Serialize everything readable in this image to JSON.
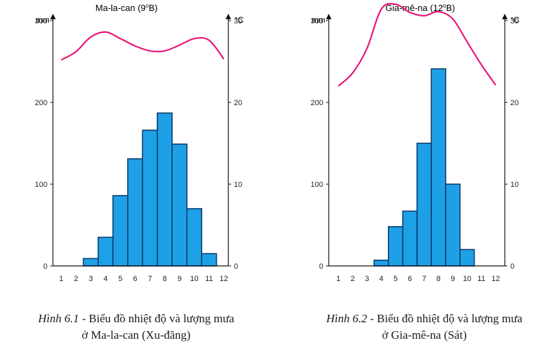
{
  "chart_data": [
    {
      "type": "bar",
      "title": "Ma-la-can (9",
      "title_sup": "o",
      "title_end": "B)",
      "y_left_unit": "mm",
      "y_right_unit": "°C",
      "y_left_ticks": [
        "0",
        "100",
        "200",
        "300"
      ],
      "y_right_ticks": [
        "0",
        "10",
        "20",
        "30"
      ],
      "ylim_left": [
        0,
        300
      ],
      "ylim_right": [
        0,
        30
      ],
      "categories": [
        "1",
        "2",
        "3",
        "4",
        "5",
        "6",
        "7",
        "8",
        "9",
        "10",
        "11",
        "12"
      ],
      "series": [
        {
          "type": "bar",
          "axis": "left",
          "values": [
            0,
            0,
            9,
            35,
            86,
            131,
            166,
            187,
            149,
            70,
            15,
            0
          ]
        },
        {
          "type": "line",
          "axis": "right",
          "values": [
            25.2,
            26.2,
            28.0,
            28.6,
            27.8,
            26.9,
            26.3,
            26.3,
            27.0,
            27.8,
            27.6,
            25.3
          ]
        }
      ],
      "colors": {
        "bar": "#1ea0e6",
        "bar_edge": "#0a3c6e",
        "line": "#e8157a"
      }
    },
    {
      "type": "bar",
      "title": "Gia-mê-na (12",
      "title_sup": "o",
      "title_end": "B)",
      "y_left_unit": "mm",
      "y_right_unit": "°C",
      "y_left_ticks": [
        "0",
        "100",
        "200",
        "300"
      ],
      "y_right_ticks": [
        "0",
        "10",
        "20",
        "30"
      ],
      "ylim_left": [
        0,
        300
      ],
      "ylim_right": [
        0,
        30
      ],
      "categories": [
        "1",
        "2",
        "3",
        "4",
        "5",
        "6",
        "7",
        "8",
        "9",
        "10",
        "11",
        "12"
      ],
      "series": [
        {
          "type": "bar",
          "axis": "left",
          "values": [
            0,
            0,
            0,
            7,
            48,
            67,
            150,
            241,
            100,
            20,
            0,
            0
          ]
        },
        {
          "type": "line",
          "axis": "right",
          "values": [
            22.0,
            23.6,
            26.6,
            31.4,
            32.0,
            31.0,
            30.6,
            31.1,
            30.2,
            27.4,
            24.6,
            22.1
          ]
        }
      ],
      "colors": {
        "bar": "#1ea0e6",
        "bar_edge": "#0a3c6e",
        "line": "#e8157a"
      }
    }
  ],
  "captions": [
    {
      "figure": "Hình 6.1",
      "dash": " - ",
      "line1": "Biểu đồ nhiệt độ và lượng mưa",
      "line2": "ở Ma-la-can (Xu-đăng)"
    },
    {
      "figure": "Hình 6.2",
      "dash": " - ",
      "line1": "Biểu đồ nhiệt độ và lượng mưa",
      "line2": "ở Gia-mê-na (Sát)"
    }
  ]
}
